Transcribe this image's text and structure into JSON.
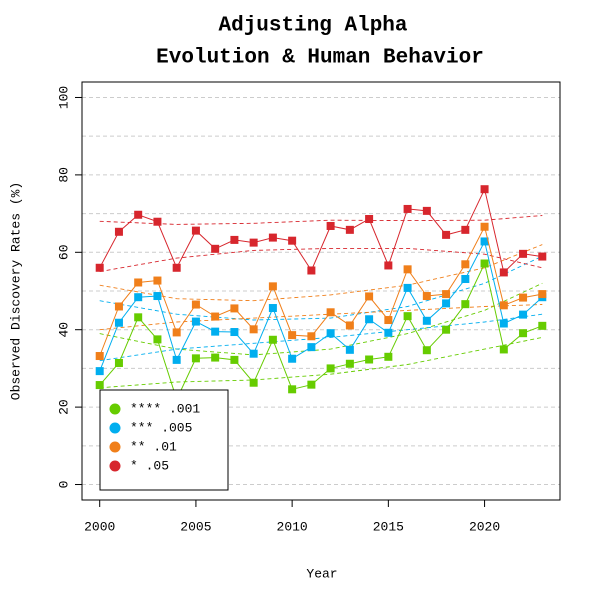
{
  "chart_data": {
    "type": "line",
    "title": [
      "Adjusting Alpha",
      "Evolution & Human Behavior"
    ],
    "x_label": "Year",
    "y_label": "Observed Discovery Rates (%)",
    "x": [
      2000,
      2001,
      2002,
      2003,
      2004,
      2005,
      2006,
      2007,
      2008,
      2009,
      2010,
      2011,
      2012,
      2013,
      2014,
      2015,
      2016,
      2017,
      2018,
      2019,
      2020,
      2021,
      2022,
      2023
    ],
    "xlim": [
      1999.08,
      2023.92
    ],
    "xticks": [
      2000,
      2005,
      2010,
      2015,
      2020
    ],
    "ylim": [
      -4,
      104
    ],
    "yticks": [
      0,
      20,
      40,
      60,
      80,
      100
    ],
    "ygrid": [
      0,
      10,
      20,
      30,
      40,
      50,
      60,
      70,
      80,
      90,
      100
    ],
    "legend_position": "bottom-left",
    "trend_x": [
      2000,
      2004,
      2008,
      2012,
      2016,
      2020,
      2023
    ],
    "series": [
      {
        "name": "**** .001",
        "color": "#66cc00",
        "values": [
          25.7,
          31.4,
          43.2,
          37.5,
          22,
          32.6,
          32.8,
          32.2,
          26.3,
          37.4,
          24.6,
          25.8,
          30,
          31.2,
          32.3,
          33,
          43.5,
          34.7,
          40,
          46.6,
          57.1,
          34.9,
          39.1,
          41
        ],
        "trend_upper": [
          39,
          35,
          33.5,
          35,
          39,
          45,
          52
        ],
        "trend_lower": [
          25,
          26.5,
          27,
          28.5,
          31,
          35,
          38
        ]
      },
      {
        "name": "*** .005",
        "color": "#00aeef",
        "values": [
          29.3,
          41.8,
          48.4,
          48.7,
          32.2,
          42.1,
          39.5,
          39.4,
          33.8,
          45.6,
          32.5,
          35.5,
          39.1,
          34.8,
          42.7,
          39.2,
          50.8,
          42.3,
          46.8,
          53.1,
          62.8,
          41.6,
          43.9,
          48.4
        ],
        "trend_upper": [
          47.5,
          44,
          42.5,
          43,
          46,
          52,
          59
        ],
        "trend_lower": [
          32,
          35,
          36.5,
          38,
          40,
          42,
          44
        ]
      },
      {
        "name": "** .01",
        "color": "#f07f1a",
        "values": [
          33.2,
          46,
          52.2,
          52.7,
          39.3,
          46.5,
          43.4,
          45.5,
          40.1,
          51.2,
          38.6,
          38.3,
          44.5,
          41.1,
          48.6,
          42.5,
          55.6,
          48.7,
          49.2,
          56.9,
          66.6,
          46.3,
          48.3,
          49.2
        ],
        "trend_upper": [
          51.5,
          48,
          47.5,
          49,
          51.5,
          56,
          62
        ],
        "trend_lower": [
          40,
          42,
          43,
          44,
          45,
          46,
          46.5
        ]
      },
      {
        "name": "* .05",
        "color": "#d7262d",
        "values": [
          56,
          65.3,
          69.7,
          67.9,
          56,
          65.6,
          60.9,
          63.2,
          62.5,
          63.8,
          63,
          55.3,
          66.8,
          65.8,
          68.6,
          56.6,
          71.2,
          70.7,
          64.5,
          65.8,
          76.3,
          54.8,
          59.6,
          58.9
        ],
        "trend_upper": [
          68,
          67.2,
          67.5,
          68.3,
          68.2,
          68.3,
          69.5
        ],
        "trend_lower": [
          55,
          58.5,
          60.5,
          61,
          61,
          59.5,
          56
        ]
      }
    ]
  }
}
